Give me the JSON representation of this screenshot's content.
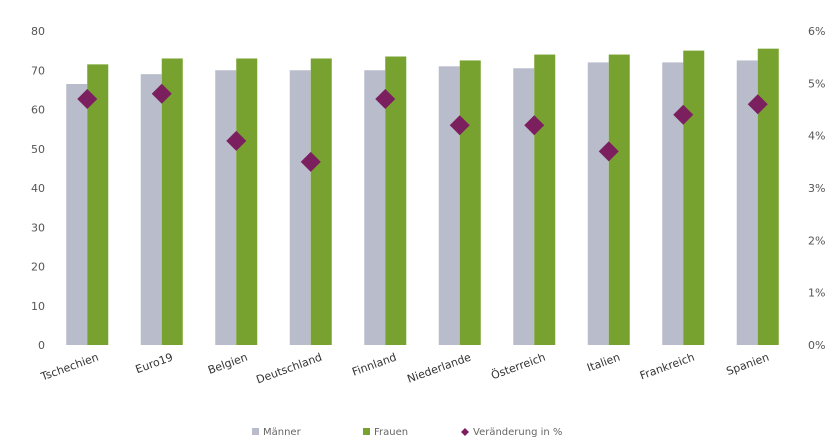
{
  "chart_data": {
    "type": "bar",
    "categories": [
      "Tschechien",
      "Euro19",
      "Belgien",
      "Deutschland",
      "Finnland",
      "Niederlande",
      "Österreich",
      "Italien",
      "Frankreich",
      "Spanien"
    ],
    "series": [
      {
        "name": "Männer",
        "kind": "bar",
        "axis": "left",
        "color": "#b8bccb",
        "values": [
          66.5,
          69,
          70,
          70,
          70,
          71,
          70.5,
          72,
          72,
          72.5
        ]
      },
      {
        "name": "Frauen",
        "kind": "bar",
        "axis": "left",
        "color": "#77a22f",
        "values": [
          71.5,
          73,
          73,
          73,
          73.5,
          72.5,
          74,
          74,
          75,
          75.5
        ]
      },
      {
        "name": "Veränderung in %",
        "kind": "marker",
        "axis": "right",
        "color": "#7c1f5f",
        "values": [
          4.7,
          4.8,
          3.9,
          3.5,
          4.7,
          4.2,
          4.2,
          3.7,
          4.4,
          4.6
        ]
      }
    ],
    "y_left": {
      "min": 0,
      "max": 80,
      "ticks": [
        "0",
        "10",
        "20",
        "30",
        "40",
        "50",
        "60",
        "70",
        "80"
      ]
    },
    "y_right": {
      "min": 0,
      "max": 6,
      "ticks": [
        "0%",
        "1%",
        "2%",
        "3%",
        "4%",
        "5%",
        "6%"
      ]
    },
    "grid": false,
    "legend": "bottom"
  }
}
